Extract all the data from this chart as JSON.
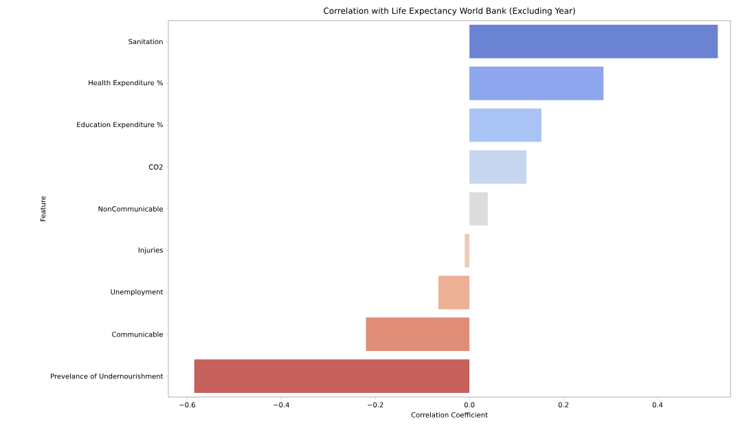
{
  "chart_data": {
    "type": "bar",
    "orientation": "horizontal",
    "title": "Correlation with Life Expectancy World Bank (Excluding Year)",
    "xlabel": "Correlation Coefficient",
    "ylabel": "Feature",
    "categories": [
      "Sanitation",
      "Health Expenditure %",
      "Education Expenditure %",
      "CO2",
      "NonCommunicable",
      "Injuries",
      "Unemployment",
      "Communicable",
      "Prevelance of Undernourishment"
    ],
    "values": [
      0.528,
      0.285,
      0.153,
      0.121,
      0.039,
      -0.01,
      -0.066,
      -0.22,
      -0.585
    ],
    "colors": [
      "#6a84d3",
      "#8da6ec",
      "#aac3f5",
      "#c6d6ef",
      "#dddcdc",
      "#eecab7",
      "#ebb095",
      "#df8d77",
      "#c5605a"
    ],
    "xlim": [
      -0.64,
      0.555
    ],
    "xticks": [
      {
        "value": -0.6,
        "label": "−0.6"
      },
      {
        "value": -0.4,
        "label": "−0.4"
      },
      {
        "value": -0.2,
        "label": "−0.2"
      },
      {
        "value": 0,
        "label": "0.0"
      },
      {
        "value": 0.2,
        "label": "0.2"
      },
      {
        "value": 0.4,
        "label": "0.4"
      }
    ]
  }
}
